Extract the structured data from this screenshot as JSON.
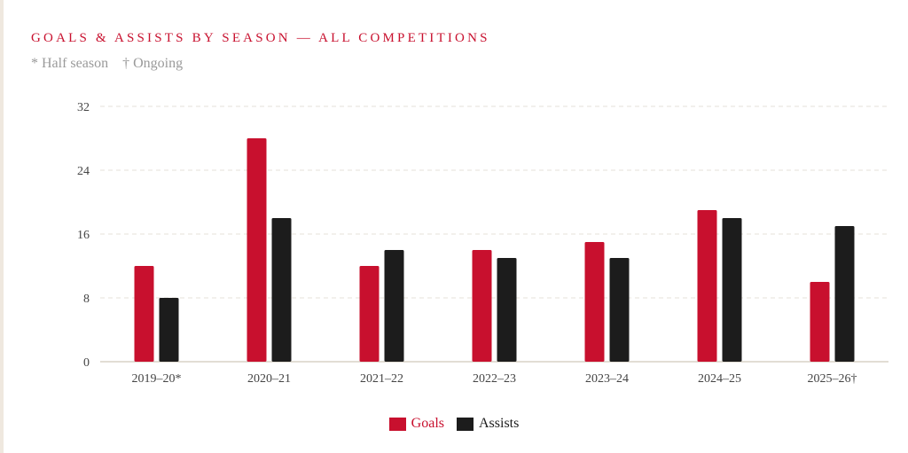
{
  "chart_data": {
    "type": "bar",
    "title": "GOALS & ASSISTS BY SEASON — ALL COMPETITIONS",
    "notes": [
      "* Half season",
      "† Ongoing"
    ],
    "categories": [
      "2019–20*",
      "2020–21",
      "2021–22",
      "2022–23",
      "2023–24",
      "2024–25",
      "2025–26†"
    ],
    "series": [
      {
        "name": "Goals",
        "color": "#c8102e",
        "values": [
          12,
          28,
          12,
          14,
          15,
          19,
          10
        ]
      },
      {
        "name": "Assists",
        "color": "#1c1c1c",
        "values": [
          8,
          18,
          14,
          13,
          13,
          18,
          17
        ]
      }
    ],
    "yticks": [
      0,
      8,
      16,
      24,
      32
    ],
    "ylim": [
      0,
      32
    ],
    "grid": true,
    "legend": "bottom-center",
    "xlabel": "",
    "ylabel": ""
  }
}
